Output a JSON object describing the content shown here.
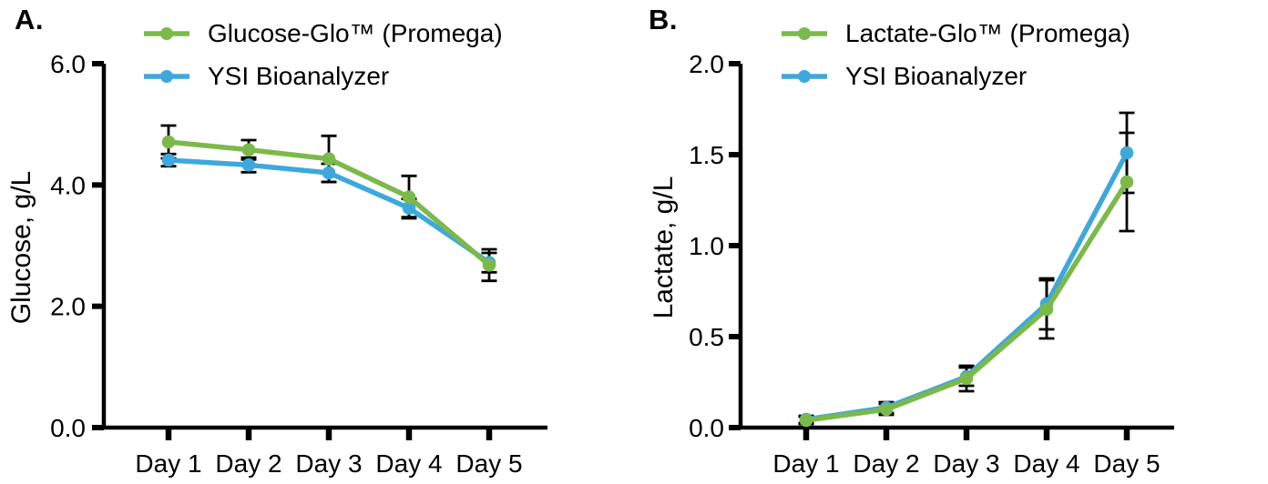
{
  "figure": {
    "background": "#ffffff",
    "axis_color": "#000000",
    "text_color": "#000000"
  },
  "panels": [
    {
      "letter": "A.",
      "y_axis_title": "Glucose, g/L",
      "legend": [
        {
          "label": "Glucose-Glo™ (Promega)",
          "color": "#7cb94b"
        },
        {
          "label": "YSI Bioanalyzer",
          "color": "#3ea8dc"
        }
      ]
    },
    {
      "letter": "B.",
      "y_axis_title": "Lactate, g/L",
      "legend": [
        {
          "label": "Lactate-Glo™ (Promega)",
          "color": "#7cb94b"
        },
        {
          "label": "YSI Bioanalyzer",
          "color": "#3ea8dc"
        }
      ]
    }
  ],
  "chart_data": [
    {
      "type": "line",
      "panel": "A",
      "title": "",
      "xlabel": "",
      "ylabel": "Glucose, g/L",
      "categories": [
        "Day 1",
        "Day 2",
        "Day 3",
        "Day 4",
        "Day 5"
      ],
      "ylim": [
        0,
        6
      ],
      "ytick_values": [
        0,
        2,
        4,
        6
      ],
      "ytick_labels": [
        "0.0",
        "2.0",
        "4.0",
        "6.0"
      ],
      "grid": false,
      "error_bars": true,
      "legend_position": "top-left",
      "series": [
        {
          "name": "Glucose-Glo™ (Promega)",
          "color": "#7cb94b",
          "marker": "circle",
          "values": [
            4.71,
            4.58,
            4.43,
            3.8,
            2.68
          ],
          "errors": [
            0.27,
            0.16,
            0.38,
            0.35,
            0.26
          ]
        },
        {
          "name": "YSI Bioanalyzer",
          "color": "#3ea8dc",
          "marker": "circle",
          "values": [
            4.41,
            4.33,
            4.2,
            3.62,
            2.72
          ],
          "errors": [
            0.1,
            0.12,
            0.15,
            0.15,
            0.16
          ]
        }
      ]
    },
    {
      "type": "line",
      "panel": "B",
      "title": "",
      "xlabel": "",
      "ylabel": "Lactate, g/L",
      "categories": [
        "Day 1",
        "Day 2",
        "Day 3",
        "Day 4",
        "Day 5"
      ],
      "ylim": [
        0,
        2
      ],
      "ytick_values": [
        0,
        0.5,
        1,
        1.5,
        2
      ],
      "ytick_labels": [
        "0.0",
        "0.5",
        "1.0",
        "1.5",
        "2.0"
      ],
      "grid": false,
      "error_bars": true,
      "legend_position": "top-left",
      "series": [
        {
          "name": "Lactate-Glo™ (Promega)",
          "color": "#7cb94b",
          "marker": "circle",
          "values": [
            0.04,
            0.1,
            0.27,
            0.65,
            1.35
          ],
          "errors": [
            0.02,
            0.03,
            0.07,
            0.16,
            0.27
          ]
        },
        {
          "name": "YSI Bioanalyzer",
          "color": "#3ea8dc",
          "marker": "circle",
          "values": [
            0.045,
            0.11,
            0.28,
            0.68,
            1.51
          ],
          "errors": [
            0.02,
            0.03,
            0.05,
            0.14,
            0.22
          ]
        }
      ]
    }
  ]
}
